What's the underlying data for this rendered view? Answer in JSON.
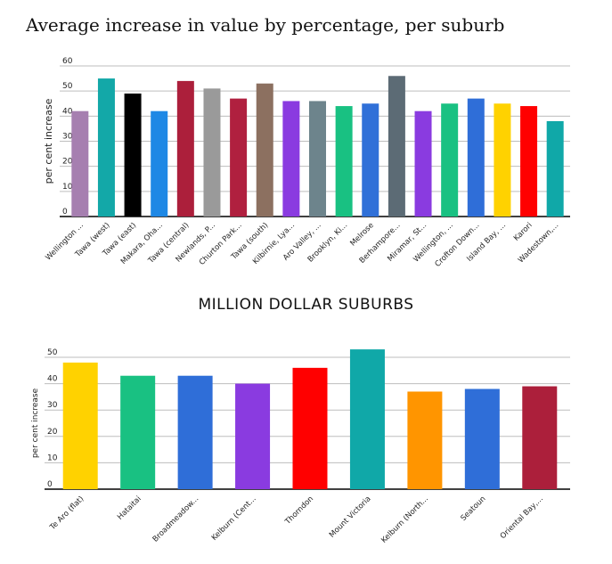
{
  "chart_data": [
    {
      "type": "bar",
      "title": "Average increase in value by percentage, per suburb",
      "xlabel": "",
      "ylabel": "per cent increase",
      "ylim": [
        0,
        60
      ],
      "yticks": [
        0,
        10,
        20,
        30,
        40,
        50,
        60
      ],
      "categories": [
        "Wellington ...",
        "Tawa (west)",
        "Tawa (east)",
        "Makara, Oha...",
        "Tawa (central)",
        "Newlands, P...",
        "Churton Park...",
        "Tawa (south)",
        "Kilbirnie, Lya...",
        "Aro Valley, ...",
        "Brooklyn, Ki...",
        "Melrose",
        "Berhampore...",
        "Miramar, St...",
        "Wellington, ...",
        "Crofton Down...",
        "Island Bay, ...",
        "Karori",
        "Wadestown,..."
      ],
      "values": [
        42,
        55,
        49,
        42,
        54,
        51,
        47,
        53,
        46,
        46,
        44,
        45,
        56,
        42,
        45,
        47,
        45,
        44,
        38
      ],
      "colors": [
        "#a67fb0",
        "#13a8a8",
        "#000000",
        "#1e88e5",
        "#ac1f3b",
        "#9a9a9a",
        "#b0203f",
        "#8c7060",
        "#8a3be0",
        "#6d848c",
        "#19c182",
        "#3070d8",
        "#5c6b75",
        "#8a3be0",
        "#19c182",
        "#2f6ed8",
        "#ffd200",
        "#ff0000",
        "#10a8a8"
      ]
    },
    {
      "type": "bar",
      "title": "MILLION DOLLAR SUBURBS",
      "xlabel": "",
      "ylabel": "per cent increase",
      "ylim": [
        0,
        50
      ],
      "yticks": [
        0,
        10,
        20,
        30,
        40,
        50
      ],
      "categories": [
        "Te Aro (flat)",
        "Hataitai",
        "Broadmeadow...",
        "Kelburn (Cent...",
        "Thorndon",
        "Mount Victoria",
        "Kelburn (North...",
        "Seatoun",
        "Oriental Bay,..."
      ],
      "values": [
        48,
        43,
        43,
        40,
        46,
        53,
        37,
        38,
        39
      ],
      "colors": [
        "#ffd200",
        "#19c182",
        "#2f6ed8",
        "#8a3be0",
        "#ff0000",
        "#10a8a8",
        "#ff9500",
        "#2f6ed8",
        "#ac1f3b"
      ]
    }
  ]
}
